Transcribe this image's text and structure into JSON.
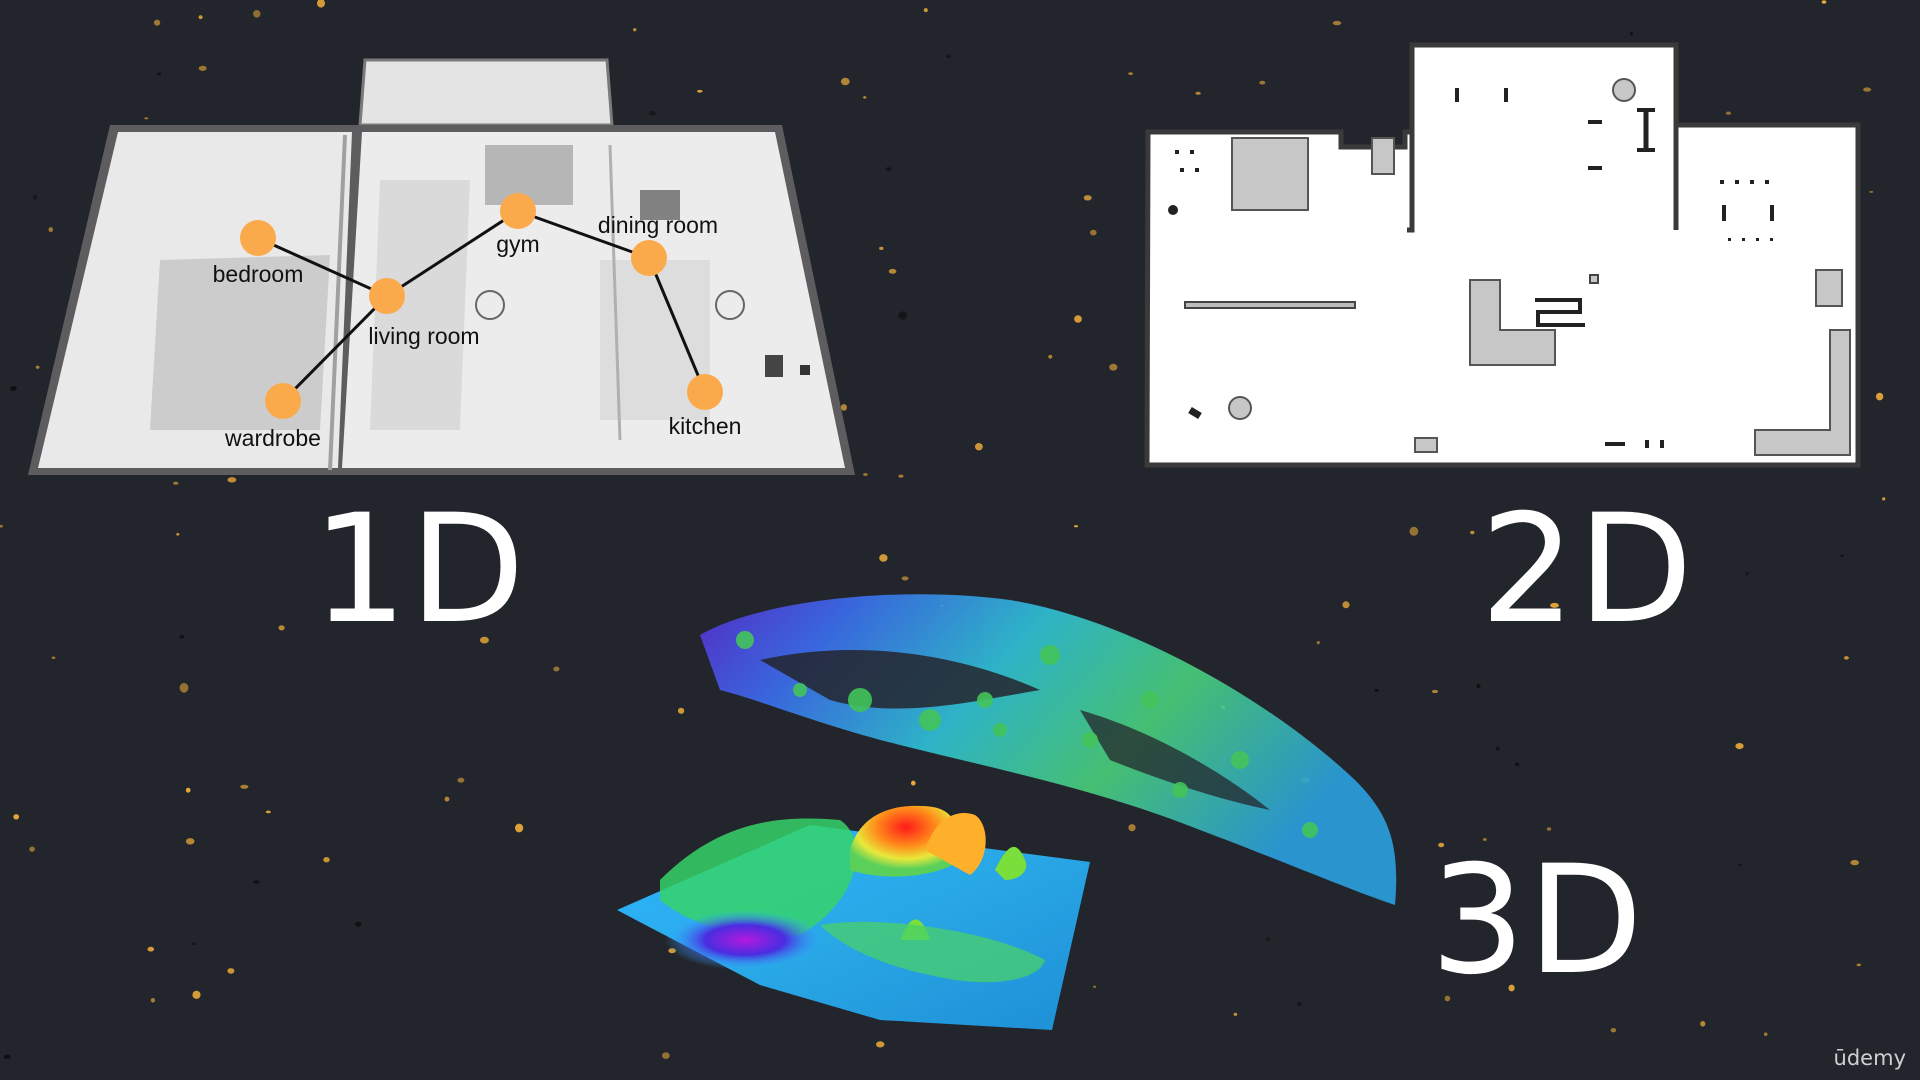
{
  "labels": {
    "one_d": "1D",
    "two_d": "2D",
    "three_d": "3D"
  },
  "graph": {
    "nodes": [
      {
        "id": "bedroom",
        "label": "bedroom"
      },
      {
        "id": "living_room",
        "label": "living room"
      },
      {
        "id": "gym",
        "label": "gym"
      },
      {
        "id": "dining_room",
        "label": "dining room"
      },
      {
        "id": "wardrobe",
        "label": "wardrobe"
      },
      {
        "id": "kitchen",
        "label": "kitchen"
      }
    ],
    "edges": [
      [
        "bedroom",
        "living_room"
      ],
      [
        "living_room",
        "gym"
      ],
      [
        "gym",
        "dining_room"
      ],
      [
        "dining_room",
        "kitchen"
      ],
      [
        "living_room",
        "wardrobe"
      ]
    ]
  },
  "watermark": "ūdemy",
  "colors": {
    "background": "#23252c",
    "node": "#fbaa4b",
    "edge": "#111111",
    "label": "#ffffff",
    "star": "#e8a93a"
  }
}
